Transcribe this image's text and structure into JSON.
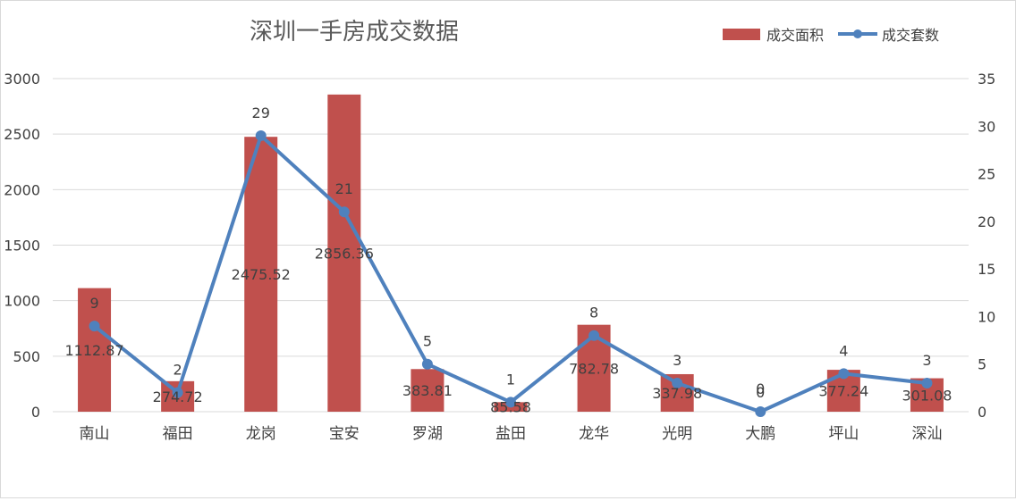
{
  "chart_data": {
    "type": "bar+line",
    "title": "深圳一手房成交数据",
    "categories": [
      "南山",
      "福田",
      "龙岗",
      "宝安",
      "罗湖",
      "盐田",
      "龙华",
      "光明",
      "大鹏",
      "坪山",
      "深汕"
    ],
    "series": [
      {
        "name": "成交面积",
        "type": "bar",
        "axis": "left",
        "values": [
          1112.87,
          274.72,
          2475.52,
          2856.36,
          383.81,
          85.58,
          782.78,
          337.98,
          0,
          377.24,
          301.08
        ],
        "labels": [
          "1112.87",
          "274.72",
          "2475.52",
          "2856.36",
          "383.81",
          "85.58",
          "782.78",
          "337.98",
          "0",
          "377.24",
          "301.08"
        ]
      },
      {
        "name": "成交套数",
        "type": "line",
        "axis": "right",
        "values": [
          9,
          2,
          29,
          21,
          5,
          1,
          8,
          3,
          0,
          4,
          3
        ],
        "labels": [
          "9",
          "2",
          "29",
          "21",
          "5",
          "1",
          "8",
          "3",
          "0",
          "4",
          "3"
        ]
      }
    ],
    "y_left": {
      "ylim": [
        0,
        3000
      ],
      "ticks": [
        "0",
        "500",
        "1000",
        "1500",
        "2000",
        "2500",
        "3000"
      ]
    },
    "y_right": {
      "ylim": [
        0,
        35
      ],
      "ticks": [
        "0",
        "5",
        "10",
        "15",
        "20",
        "25",
        "30",
        "35"
      ]
    },
    "grid": true,
    "legend": "top-right",
    "colors": {
      "bar": "#c0504d",
      "line": "#4f81bd",
      "grid": "#d9d9d9",
      "text": "#404040",
      "title": "#595959"
    }
  }
}
